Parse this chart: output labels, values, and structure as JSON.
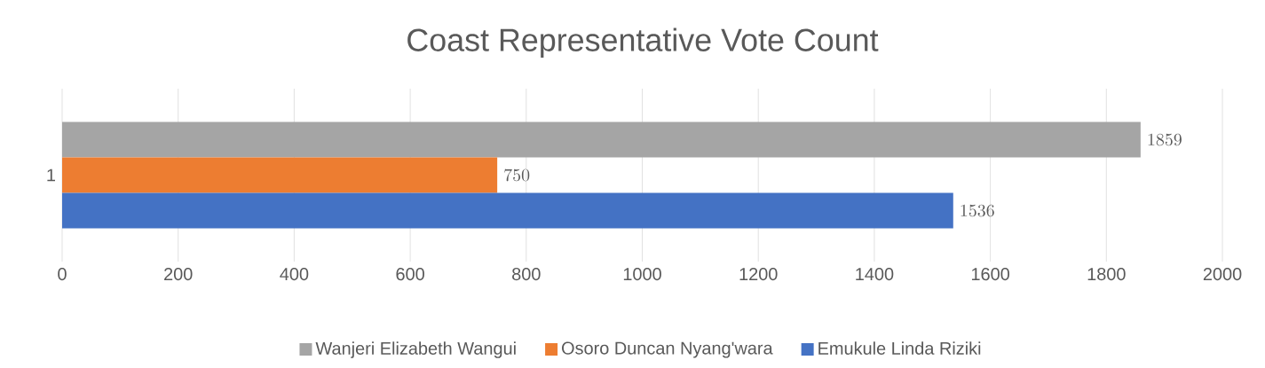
{
  "chart_data": {
    "type": "bar",
    "orientation": "horizontal",
    "title": "Coast Representative Vote Count",
    "categories": [
      "1"
    ],
    "series": [
      {
        "name": "Wanjeri Elizabeth Wangui",
        "color": "#a5a5a5",
        "values": [
          1859
        ]
      },
      {
        "name": "Osoro Duncan Nyang'wara",
        "color": "#ed7d31",
        "values": [
          750
        ]
      },
      {
        "name": "Emukule Linda Riziki",
        "color": "#4472c4",
        "values": [
          1536
        ]
      }
    ],
    "xlim": [
      0,
      2000
    ],
    "xticks": [
      0,
      200,
      400,
      600,
      800,
      1000,
      1200,
      1400,
      1600,
      1800,
      2000
    ],
    "grid": "x",
    "legend": "bottom",
    "data_labels": true
  }
}
